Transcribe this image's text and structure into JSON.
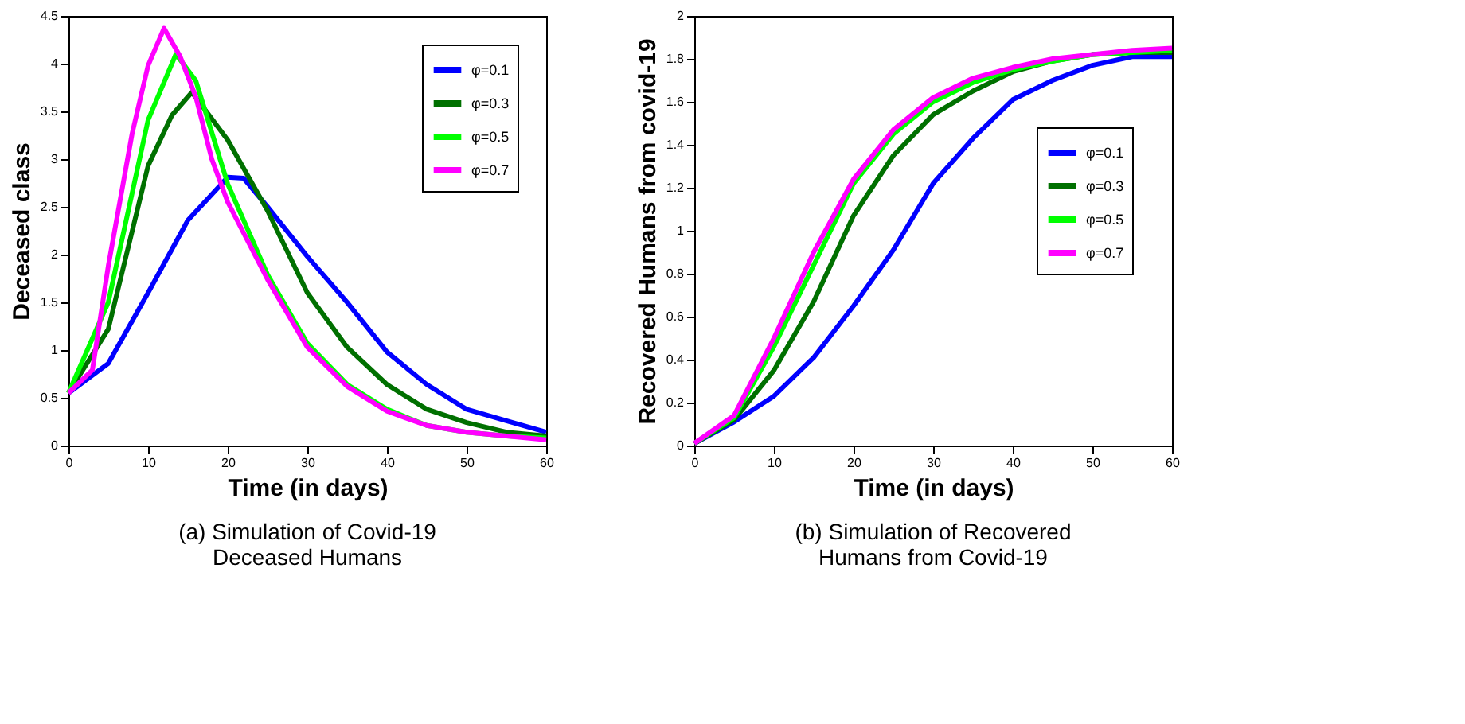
{
  "chart_data": [
    {
      "type": "line",
      "title": "(a)  Simulation of Covid-19 Deceased Humans",
      "xlabel": "Time (in days)",
      "ylabel": "Deceased  class",
      "xlim": [
        0,
        60
      ],
      "xticks": [
        0,
        10,
        20,
        30,
        40,
        50,
        60
      ],
      "ylim": [
        0,
        4.5
      ],
      "yticks": [
        0,
        0.5,
        1,
        1.5,
        2,
        2.5,
        3,
        3.5,
        4,
        4.5
      ],
      "grid": false,
      "legend": "top right",
      "line_style": "solid",
      "marker": "none",
      "series": [
        {
          "name": "φ=0.1",
          "color": "#0000ff",
          "x": [
            0,
            5,
            10,
            15,
            20,
            22,
            25,
            30,
            35,
            40,
            45,
            50,
            55,
            60
          ],
          "values": [
            0.55,
            0.86,
            1.6,
            2.36,
            2.81,
            2.8,
            2.5,
            1.98,
            1.5,
            0.98,
            0.64,
            0.38,
            0.26,
            0.14
          ]
        },
        {
          "name": "φ=0.3",
          "color": "#007000",
          "x": [
            0,
            5,
            10,
            13,
            15.5,
            20,
            25,
            30,
            35,
            40,
            45,
            50,
            55,
            60
          ],
          "values": [
            0.55,
            1.22,
            2.93,
            3.46,
            3.7,
            3.2,
            2.46,
            1.6,
            1.03,
            0.64,
            0.38,
            0.24,
            0.14,
            0.1
          ]
        },
        {
          "name": "φ=0.5",
          "color": "#00ff00",
          "x": [
            0,
            5,
            10,
            13.5,
            16,
            20,
            25,
            30,
            35,
            40,
            45,
            50,
            55,
            60
          ],
          "values": [
            0.55,
            1.5,
            3.41,
            4.1,
            3.82,
            2.74,
            1.79,
            1.07,
            0.64,
            0.38,
            0.21,
            0.14,
            0.1,
            0.08
          ]
        },
        {
          "name": "φ=0.7",
          "color": "#ff00ff",
          "x": [
            0,
            3,
            5,
            8,
            10,
            12,
            14,
            16,
            18,
            20,
            25,
            30,
            35,
            40,
            45,
            50,
            55,
            60
          ],
          "values": [
            0.55,
            0.79,
            1.88,
            3.27,
            3.98,
            4.37,
            4.08,
            3.65,
            3.0,
            2.55,
            1.74,
            1.03,
            0.62,
            0.36,
            0.21,
            0.14,
            0.1,
            0.06
          ]
        }
      ]
    },
    {
      "type": "line",
      "title": "(b)  Simulation of Recovered Humans from Covid-19",
      "xlabel": "Time (in days)",
      "ylabel": "Recovered Humans from covid-19",
      "xlim": [
        0,
        60
      ],
      "xticks": [
        0,
        10,
        20,
        30,
        40,
        50,
        60
      ],
      "ylim": [
        0,
        2
      ],
      "yticks": [
        0,
        0.2,
        0.4,
        0.6,
        0.8,
        1,
        1.2,
        1.4,
        1.6,
        1.8,
        2
      ],
      "grid": false,
      "legend": "right",
      "line_style": "solid",
      "marker": "none",
      "series": [
        {
          "name": "φ=0.1",
          "color": "#0000ff",
          "x": [
            0,
            5,
            10,
            15,
            20,
            25,
            30,
            35,
            40,
            45,
            50,
            55,
            60
          ],
          "values": [
            0.01,
            0.11,
            0.23,
            0.41,
            0.65,
            0.91,
            1.22,
            1.43,
            1.61,
            1.7,
            1.77,
            1.81,
            1.81
          ]
        },
        {
          "name": "φ=0.3",
          "color": "#007000",
          "x": [
            0,
            5,
            10,
            15,
            20,
            25,
            30,
            35,
            40,
            45,
            50,
            55,
            60
          ],
          "values": [
            0.01,
            0.12,
            0.35,
            0.67,
            1.07,
            1.35,
            1.54,
            1.65,
            1.74,
            1.79,
            1.82,
            1.83,
            1.83
          ]
        },
        {
          "name": "φ=0.5",
          "color": "#00ff00",
          "x": [
            0,
            5,
            10,
            15,
            20,
            25,
            30,
            35,
            40,
            45,
            50,
            55,
            60
          ],
          "values": [
            0.01,
            0.13,
            0.46,
            0.84,
            1.22,
            1.45,
            1.6,
            1.69,
            1.75,
            1.79,
            1.82,
            1.83,
            1.84
          ]
        },
        {
          "name": "φ=0.7",
          "color": "#ff00ff",
          "x": [
            0,
            5,
            10,
            15,
            20,
            25,
            30,
            35,
            40,
            45,
            50,
            55,
            60
          ],
          "values": [
            0.01,
            0.14,
            0.5,
            0.9,
            1.24,
            1.47,
            1.62,
            1.71,
            1.76,
            1.8,
            1.82,
            1.84,
            1.85
          ]
        }
      ]
    }
  ]
}
